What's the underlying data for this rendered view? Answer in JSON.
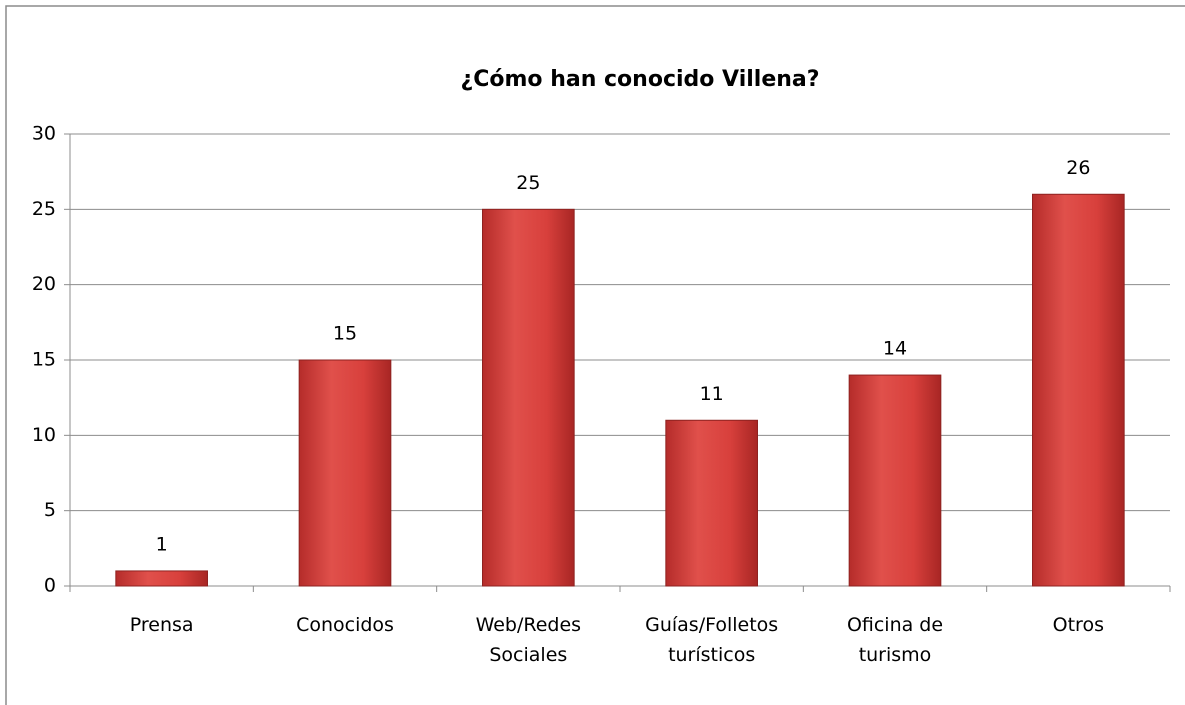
{
  "chart_data": {
    "type": "bar",
    "title": "¿Cómo han conocido Villena?",
    "categories": [
      "Prensa",
      "Conocidos",
      "Web/Redes Sociales",
      "Guías/Folletos turísticos",
      "Oficina de turismo",
      "Otros"
    ],
    "values": [
      1,
      15,
      25,
      11,
      14,
      26
    ],
    "color": "#d8403c",
    "ylim": [
      0,
      30
    ],
    "yticks": [
      0,
      5,
      10,
      15,
      20,
      25,
      30
    ],
    "grid": true
  }
}
